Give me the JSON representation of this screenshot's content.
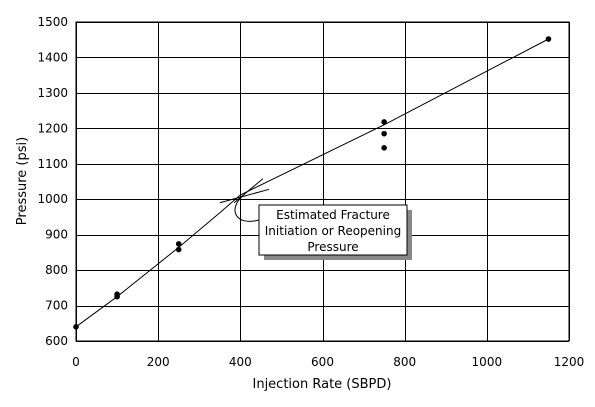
{
  "chart_data": {
    "type": "scatter",
    "xlabel": "Injection Rate (SBPD)",
    "ylabel": "Pressure (psi)",
    "xlim": [
      0,
      1200
    ],
    "ylim": [
      600,
      1500
    ],
    "xticks": [
      0,
      200,
      400,
      600,
      800,
      1000,
      1200
    ],
    "yticks": [
      600,
      700,
      800,
      900,
      1000,
      1100,
      1200,
      1300,
      1400,
      1500
    ],
    "grid": true,
    "points": [
      {
        "x": 0,
        "y": 640
      },
      {
        "x": 100,
        "y": 725
      },
      {
        "x": 100,
        "y": 732
      },
      {
        "x": 250,
        "y": 858
      },
      {
        "x": 250,
        "y": 874
      },
      {
        "x": 750,
        "y": 1145
      },
      {
        "x": 750,
        "y": 1185
      },
      {
        "x": 750,
        "y": 1218
      },
      {
        "x": 1150,
        "y": 1452
      }
    ],
    "fit_line": [
      {
        "x": 0,
        "y": 640
      },
      {
        "x": 100,
        "y": 725
      },
      {
        "x": 250,
        "y": 864
      },
      {
        "x": 350,
        "y": 962
      },
      {
        "x": 400,
        "y": 1012
      },
      {
        "x": 750,
        "y": 1210
      },
      {
        "x": 1150,
        "y": 1452
      }
    ],
    "tangent_lines": [
      {
        "from": {
          "x": 385,
          "y": 990
        },
        "to": {
          "x": 455,
          "y": 1058
        }
      },
      {
        "from": {
          "x": 350,
          "y": 990
        },
        "to": {
          "x": 470,
          "y": 1028
        }
      }
    ],
    "annotation": {
      "lines": [
        "Estimated Fracture",
        "Initiation or Reopening",
        "Pressure"
      ],
      "target": {
        "x": 405,
        "y": 1008
      }
    }
  }
}
